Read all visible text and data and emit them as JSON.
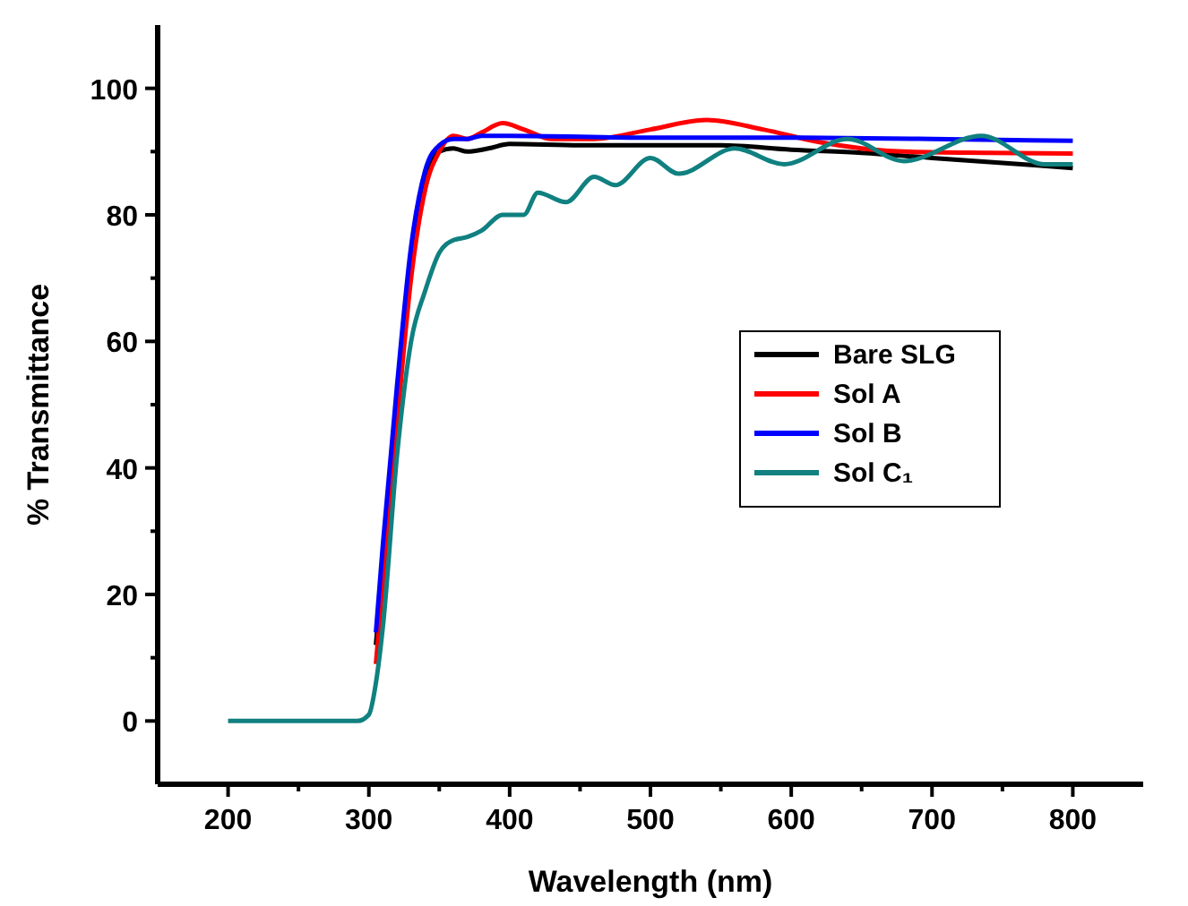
{
  "chart_data": {
    "type": "line",
    "xlabel": "Wavelength (nm)",
    "ylabel": "% Transmittance",
    "xlim": [
      150,
      850
    ],
    "ylim": [
      -10,
      110
    ],
    "xticks": [
      200,
      {
        "value": 250,
        "label": null
      },
      300,
      {
        "value": 350,
        "label": null
      },
      400,
      {
        "value": 450,
        "label": null
      },
      500,
      {
        "value": 550,
        "label": null
      },
      600,
      {
        "value": 650,
        "label": null
      },
      700,
      {
        "value": 750,
        "label": null
      },
      800
    ],
    "yticks": [
      0,
      {
        "value": 10,
        "label": null
      },
      20,
      {
        "value": 30,
        "label": null
      },
      40,
      {
        "value": 50,
        "label": null
      },
      60,
      {
        "value": 70,
        "label": null
      },
      80,
      {
        "value": 90,
        "label": null
      },
      100
    ],
    "legend": "right",
    "grid": false,
    "marker": "none",
    "line_style": "solid",
    "series": [
      {
        "name": "Bare SLG",
        "color": "#000000",
        "x": [
          305,
          310,
          320,
          330,
          340,
          350,
          360,
          370,
          385,
          400,
          450,
          500,
          550,
          600,
          650,
          700,
          750,
          800
        ],
        "values": [
          12,
          25,
          50,
          72,
          85,
          90,
          90.5,
          90,
          90.5,
          91.2,
          91,
          91,
          91,
          90.3,
          89.8,
          89,
          88.2,
          87.4
        ]
      },
      {
        "name": "Sol A",
        "color": "#ff0000",
        "x": [
          305,
          310,
          320,
          330,
          340,
          350,
          360,
          370,
          380,
          395,
          410,
          430,
          460,
          500,
          540,
          580,
          620,
          680,
          740,
          800
        ],
        "values": [
          9,
          22,
          47,
          70,
          84,
          90,
          92.5,
          92,
          93,
          94.5,
          93.5,
          92,
          92,
          93.5,
          95,
          93.5,
          91.5,
          90,
          89.8,
          89.7
        ]
      },
      {
        "name": "Sol B",
        "color": "#0000ff",
        "x": [
          305,
          310,
          320,
          330,
          340,
          350,
          360,
          370,
          380,
          400,
          500,
          600,
          700,
          800
        ],
        "values": [
          14,
          28,
          53,
          75,
          87,
          91,
          92,
          92,
          92.5,
          92.5,
          92.2,
          92.2,
          92,
          91.7
        ]
      },
      {
        "name": "Sol C₁",
        "color": "#108080",
        "x": [
          200,
          292,
          300,
          305,
          310,
          320,
          330,
          340,
          350,
          360,
          370,
          380,
          395,
          410,
          420,
          440,
          460,
          475,
          500,
          520,
          560,
          595,
          640,
          680,
          735,
          780,
          800
        ],
        "values": [
          0,
          0,
          1,
          6,
          15,
          42,
          60,
          68,
          74,
          76,
          76.5,
          77.5,
          80,
          80,
          83.5,
          82,
          86,
          84.7,
          89,
          86.5,
          90.5,
          88,
          92,
          88.5,
          92.5,
          88,
          88
        ]
      }
    ]
  }
}
